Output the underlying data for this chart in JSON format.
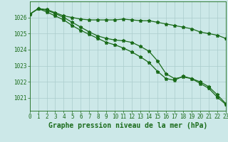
{
  "background_color": "#cce8e8",
  "grid_color": "#aacccc",
  "line_color": "#1a6b1a",
  "xlabel": "Graphe pression niveau de la mer (hPa)",
  "ylabel_ticks": [
    1021,
    1022,
    1023,
    1024,
    1025,
    1026
  ],
  "xticks": [
    0,
    1,
    2,
    3,
    4,
    5,
    6,
    7,
    8,
    9,
    10,
    11,
    12,
    13,
    14,
    15,
    16,
    17,
    18,
    19,
    20,
    21,
    22,
    23
  ],
  "ylim": [
    1020.2,
    1027.0
  ],
  "xlim": [
    0,
    23
  ],
  "series": [
    [
      1026.2,
      1026.55,
      1026.5,
      1026.3,
      1026.1,
      1026.0,
      1025.9,
      1025.85,
      1025.85,
      1025.85,
      1025.85,
      1025.9,
      1025.85,
      1025.8,
      1025.8,
      1025.7,
      1025.6,
      1025.5,
      1025.4,
      1025.3,
      1025.1,
      1025.0,
      1024.9,
      1024.7
    ],
    [
      1026.2,
      1026.55,
      1026.45,
      1026.25,
      1026.0,
      1025.7,
      1025.4,
      1025.1,
      1024.85,
      1024.7,
      1024.6,
      1024.55,
      1024.45,
      1024.2,
      1023.9,
      1023.3,
      1022.5,
      1022.2,
      1022.3,
      1022.2,
      1022.0,
      1021.7,
      1021.2,
      1020.65
    ],
    [
      1026.2,
      1026.55,
      1026.35,
      1026.1,
      1025.85,
      1025.5,
      1025.2,
      1024.95,
      1024.7,
      1024.45,
      1024.3,
      1024.1,
      1023.85,
      1023.55,
      1023.2,
      1022.65,
      1022.2,
      1022.1,
      1022.35,
      1022.2,
      1021.9,
      1021.6,
      1021.05,
      1020.6
    ]
  ],
  "marker": "*",
  "markersize": 3.5,
  "linewidth": 0.9,
  "tick_fontsize": 5.5,
  "xlabel_fontsize": 7,
  "tick_color": "#1a6b1a"
}
